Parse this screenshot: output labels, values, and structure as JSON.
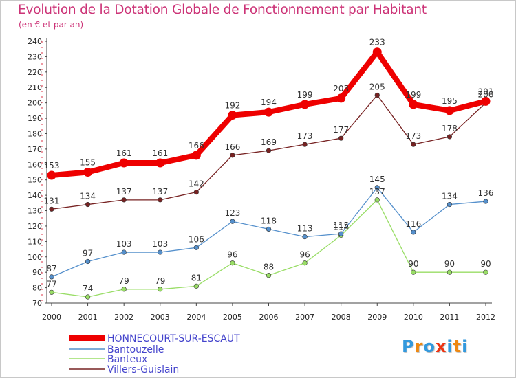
{
  "chart_data": {
    "type": "line",
    "title": "Evolution de la Dotation Globale de Fonctionnement par Habitant",
    "subtitle": "(en € et par an)",
    "xlabel": "",
    "ylabel": "",
    "x": [
      "2000",
      "2001",
      "2002",
      "2003",
      "2004",
      "2005",
      "2006",
      "2007",
      "2008",
      "2009",
      "2010",
      "2011",
      "2012"
    ],
    "ylim": [
      70,
      240
    ],
    "yticks": [
      70,
      80,
      90,
      100,
      110,
      120,
      130,
      140,
      150,
      160,
      170,
      180,
      190,
      200,
      210,
      220,
      230,
      240
    ],
    "grid": false,
    "legend_position": "bottom-left",
    "series": [
      {
        "name": "HONNECOURT-SUR-ESCAUT",
        "color": "#ee0000",
        "emphasis": "thick",
        "values": [
          153,
          155,
          161,
          161,
          166,
          192,
          194,
          199,
          203,
          233,
          199,
          195,
          201
        ]
      },
      {
        "name": "Bantouzelle",
        "color": "#5590cc",
        "emphasis": "thin",
        "values": [
          87,
          97,
          103,
          103,
          106,
          123,
          118,
          113,
          115,
          145,
          116,
          134,
          136
        ]
      },
      {
        "name": "Banteux",
        "color": "#99dd66",
        "emphasis": "thin",
        "values": [
          77,
          74,
          79,
          79,
          81,
          96,
          88,
          96,
          114,
          137,
          90,
          90,
          90
        ]
      },
      {
        "name": "Villers-Guislain",
        "color": "#772222",
        "emphasis": "thin",
        "values": [
          131,
          134,
          137,
          137,
          142,
          166,
          169,
          173,
          177,
          205,
          173,
          178,
          200
        ]
      }
    ]
  },
  "logo": {
    "letters": [
      "P",
      "r",
      "o",
      "x",
      "i",
      "t",
      "i"
    ],
    "colors": [
      "#3399dd",
      "#ee8811",
      "#3399dd",
      "#ee3311",
      "#3399dd",
      "#ee8811",
      "#3399dd"
    ]
  }
}
